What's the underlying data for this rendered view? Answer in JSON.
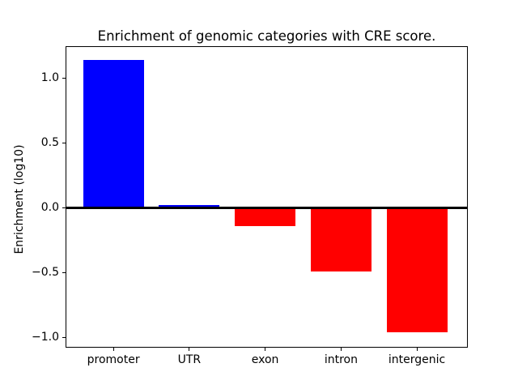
{
  "figure": {
    "background": "#ffffff"
  },
  "chart_data": {
    "type": "bar",
    "title": "Enrichment of genomic categories with CRE score.",
    "xlabel": "",
    "ylabel": "Enrichment (log10)",
    "categories": [
      "promoter",
      "UTR",
      "exon",
      "intron",
      "intergenic"
    ],
    "values": [
      1.14,
      0.02,
      -0.14,
      -0.49,
      -0.96
    ],
    "bar_colors": [
      "#0000ff",
      "#0000ff",
      "#ff0000",
      "#ff0000",
      "#ff0000"
    ],
    "positive_color": "#0000ff",
    "negative_color": "#ff0000",
    "bar_width": 0.8,
    "xlim": [
      -0.62,
      4.66
    ],
    "ylim": [
      -1.07,
      1.24
    ],
    "yticks": [
      {
        "value": 1.0,
        "label": "1.0"
      },
      {
        "value": 0.5,
        "label": "0.5"
      },
      {
        "value": 0.0,
        "label": "0.0"
      },
      {
        "value": -0.5,
        "label": "−0.5"
      },
      {
        "value": -1.0,
        "label": "−1.0"
      }
    ],
    "zero_line": {
      "value": 0,
      "color": "#000000"
    },
    "grid": false,
    "legend": "none",
    "plot_border_color": "#000000"
  }
}
